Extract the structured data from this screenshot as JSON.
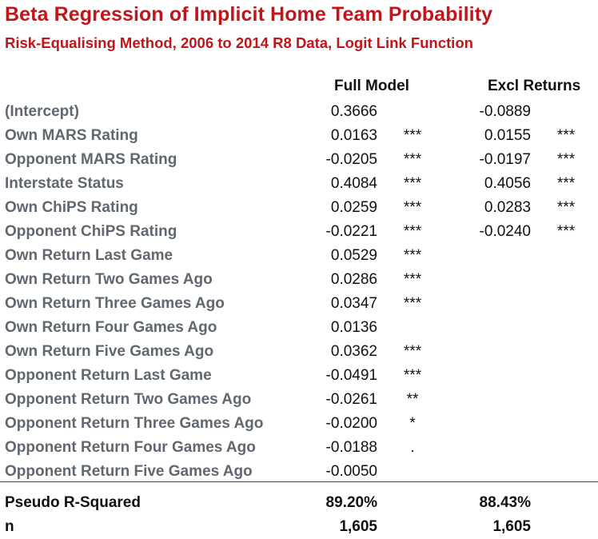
{
  "title": "Beta Regression of Implicit Home Team Probability",
  "subtitle": "Risk-Equalising Method, 2006 to 2014 R8 Data, Logit Link Function",
  "columns": {
    "full_model": "Full Model",
    "excl_returns": "Excl Returns"
  },
  "rows": [
    {
      "label": "(Intercept)",
      "full": "0.3666",
      "full_sig": "",
      "excl": "-0.0889",
      "excl_sig": ""
    },
    {
      "label": "Own MARS Rating",
      "full": "0.0163",
      "full_sig": "***",
      "excl": "0.0155",
      "excl_sig": "***"
    },
    {
      "label": "Opponent MARS Rating",
      "full": "-0.0205",
      "full_sig": "***",
      "excl": "-0.0197",
      "excl_sig": "***"
    },
    {
      "label": "Interstate Status",
      "full": "0.4084",
      "full_sig": "***",
      "excl": "0.4056",
      "excl_sig": "***"
    },
    {
      "label": "Own ChiPS Rating",
      "full": "0.0259",
      "full_sig": "***",
      "excl": "0.0283",
      "excl_sig": "***"
    },
    {
      "label": "Opponent ChiPS Rating",
      "full": "-0.0221",
      "full_sig": "***",
      "excl": "-0.0240",
      "excl_sig": "***"
    },
    {
      "label": "Own Return Last Game",
      "full": "0.0529",
      "full_sig": "***",
      "excl": "",
      "excl_sig": ""
    },
    {
      "label": "Own Return Two Games Ago",
      "full": "0.0286",
      "full_sig": "***",
      "excl": "",
      "excl_sig": ""
    },
    {
      "label": "Own Return Three Games Ago",
      "full": "0.0347",
      "full_sig": "***",
      "excl": "",
      "excl_sig": ""
    },
    {
      "label": "Own Return Four Games Ago",
      "full": "0.0136",
      "full_sig": "",
      "excl": "",
      "excl_sig": ""
    },
    {
      "label": "Own Return Five Games Ago",
      "full": "0.0362",
      "full_sig": "***",
      "excl": "",
      "excl_sig": ""
    },
    {
      "label": "Opponent Return Last Game",
      "full": "-0.0491",
      "full_sig": "***",
      "excl": "",
      "excl_sig": ""
    },
    {
      "label": "Opponent Return Two Games Ago",
      "full": "-0.0261",
      "full_sig": "**",
      "excl": "",
      "excl_sig": ""
    },
    {
      "label": "Opponent Return Three Games Ago",
      "full": "-0.0200",
      "full_sig": "*",
      "excl": "",
      "excl_sig": ""
    },
    {
      "label": "Opponent Return Four Games Ago",
      "full": "-0.0188",
      "full_sig": ".",
      "excl": "",
      "excl_sig": ""
    },
    {
      "label": "Opponent Return Five Games Ago",
      "full": "-0.0050",
      "full_sig": "",
      "excl": "",
      "excl_sig": ""
    }
  ],
  "footer": [
    {
      "label": "Pseudo R-Squared",
      "full": "89.20%",
      "excl": "88.43%"
    },
    {
      "label": "n",
      "full": "1,605",
      "excl": "1,605"
    }
  ],
  "colors": {
    "title": "#c0161b",
    "row_label": "#5f6770",
    "text": "#111111"
  }
}
